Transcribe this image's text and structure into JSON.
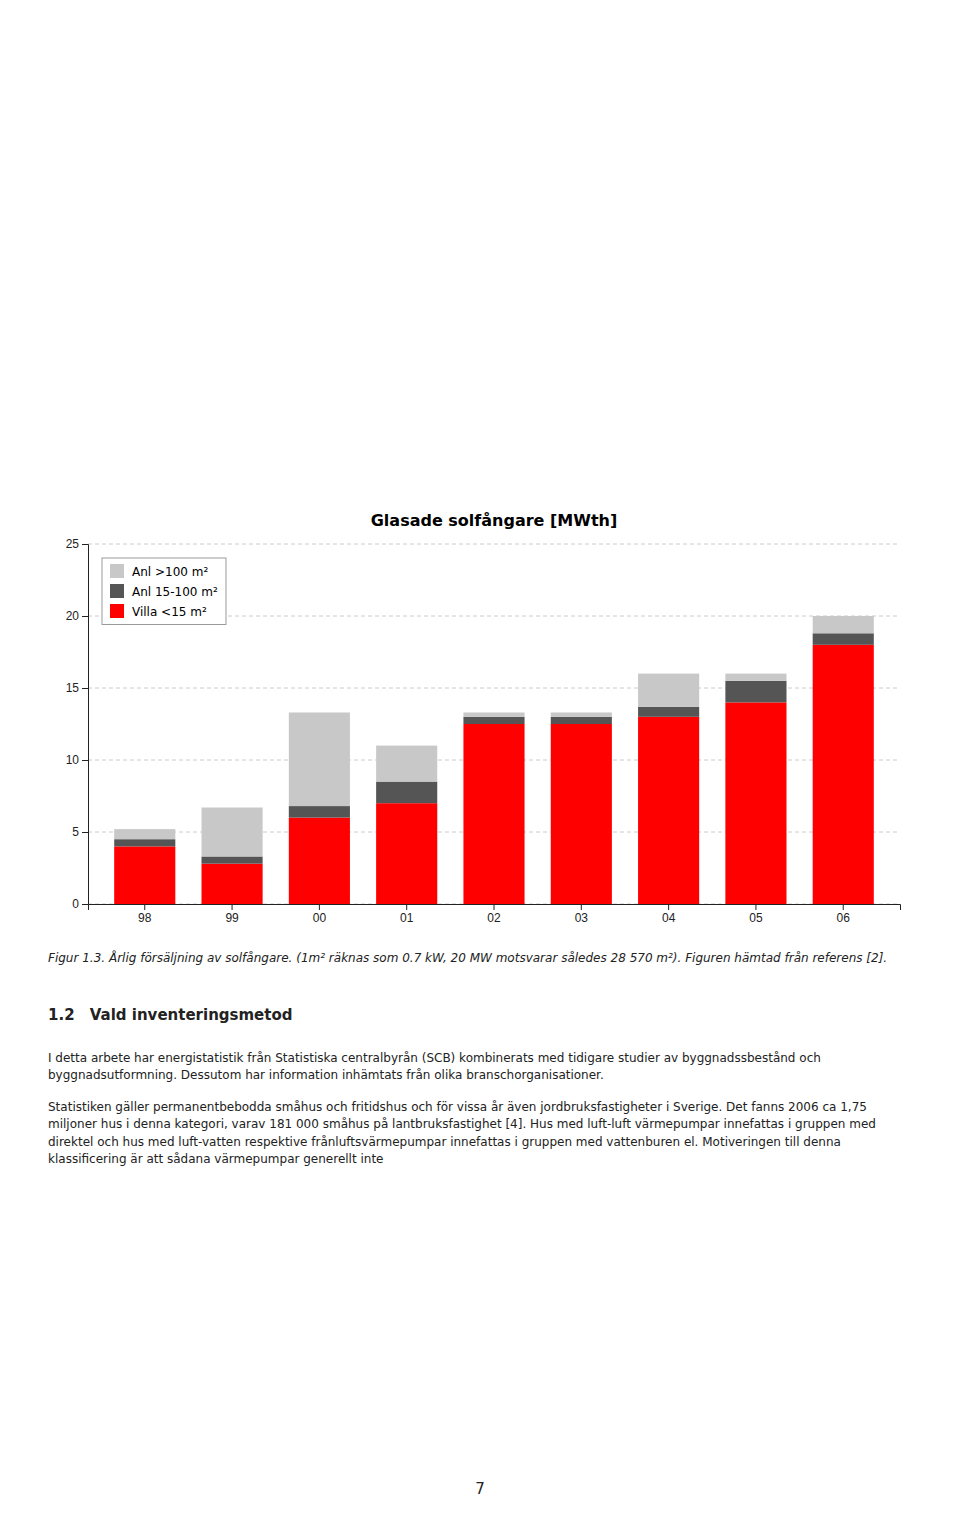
{
  "chart_data": {
    "type": "bar",
    "stacked": true,
    "title": "Glasade solfångare [MWth]",
    "categories": [
      "98",
      "99",
      "00",
      "01",
      "02",
      "03",
      "04",
      "05",
      "06"
    ],
    "series": [
      {
        "name": "Villa <15 m²",
        "color": "#ff0000",
        "values": [
          4.0,
          2.8,
          6.0,
          7.0,
          12.5,
          12.5,
          13.0,
          14.0,
          18.0
        ]
      },
      {
        "name": "Anl 15-100 m²",
        "color": "#555555",
        "values": [
          0.5,
          0.5,
          0.8,
          1.5,
          0.5,
          0.5,
          0.7,
          1.5,
          0.8
        ]
      },
      {
        "name": "Anl >100 m²",
        "color": "#c8c8c8",
        "values": [
          0.7,
          3.4,
          6.5,
          2.5,
          0.3,
          0.3,
          2.3,
          0.5,
          1.2
        ]
      }
    ],
    "ylim": [
      0,
      25
    ],
    "yticks": [
      0,
      5,
      10,
      15,
      20,
      25
    ],
    "grid": true,
    "legend": "upper left"
  },
  "page": {
    "caption": "Figur 1.3. Årlig försäljning av solfångare. (1m² räknas som 0.7 kW, 20 MW motsvarar således 28 570 m²). Figuren hämtad från referens [2].",
    "heading": "1.2\tVald inventeringsmetod",
    "paragraphs": [
      "I detta arbete har energistatistik från Statistiska centralbyrån (SCB) kombinerats med tidigare studier av byggnadssbestånd och byggnadsutformning. Dessutom har information inhämtats från olika branschorganisationer.",
      "Statistiken gäller permanentbebodda småhus och fritidshus och för vissa år även jordbruksfastigheter i Sverige. Det fanns 2006 ca 1,75 miljoner hus i denna kategori, varav 181 000 småhus på lantbruksfastighet [4]. Hus med luft-luft värmepumpar innefattas i gruppen med direktel och hus med luft-vatten respektive frånluftsvärmepumpar innefattas i gruppen med vattenburen el. Motiveringen till denna klassificering är att sådana värmepumpar generellt inte"
    ],
    "page_number": "7"
  }
}
